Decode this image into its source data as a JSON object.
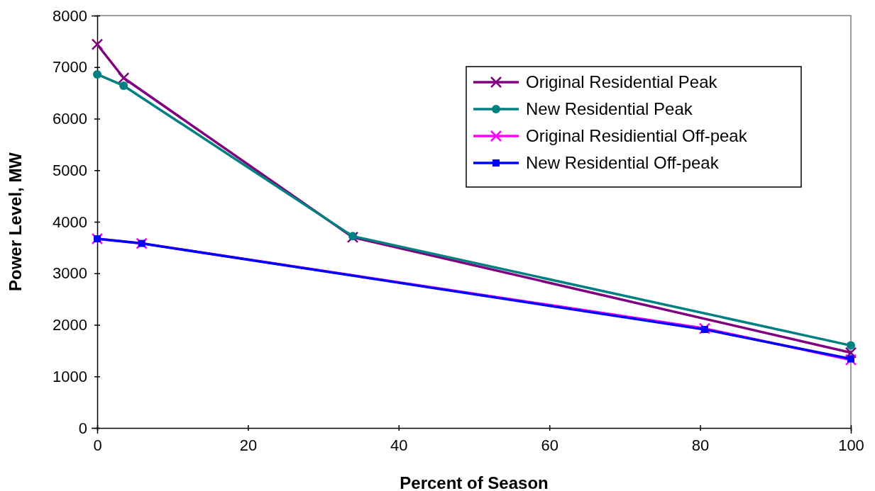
{
  "chart_data": {
    "type": "line",
    "xlabel": "Percent of Season",
    "ylabel": "Power Level, MW",
    "xlim": [
      0,
      100
    ],
    "xticks": [
      0,
      20,
      40,
      60,
      80,
      100
    ],
    "ylim": [
      0,
      8000
    ],
    "yticks": [
      0,
      1000,
      2000,
      3000,
      4000,
      5000,
      6000,
      7000,
      8000
    ],
    "grid": false,
    "legend": "top right",
    "series": [
      {
        "name": "Original Residential Peak",
        "color": "#800080",
        "marker": "cross",
        "x": [
          0,
          3.5,
          33.9,
          100
        ],
        "values": [
          7440,
          6790,
          3700,
          1460
        ]
      },
      {
        "name": "New Residential Peak",
        "color": "#008080",
        "marker": "circle",
        "x": [
          0,
          3.5,
          33.9,
          100
        ],
        "values": [
          6860,
          6640,
          3720,
          1600
        ]
      },
      {
        "name": "Original Residiential Off-peak",
        "color": "#ff00ff",
        "marker": "cross",
        "x": [
          0,
          5.9,
          80.6,
          100
        ],
        "values": [
          3670,
          3580,
          1930,
          1320
        ]
      },
      {
        "name": "New Residential Off-peak",
        "color": "#0000ff",
        "marker": "square",
        "x": [
          0,
          5.9,
          80.6,
          100
        ],
        "values": [
          3670,
          3580,
          1910,
          1340
        ]
      }
    ]
  }
}
